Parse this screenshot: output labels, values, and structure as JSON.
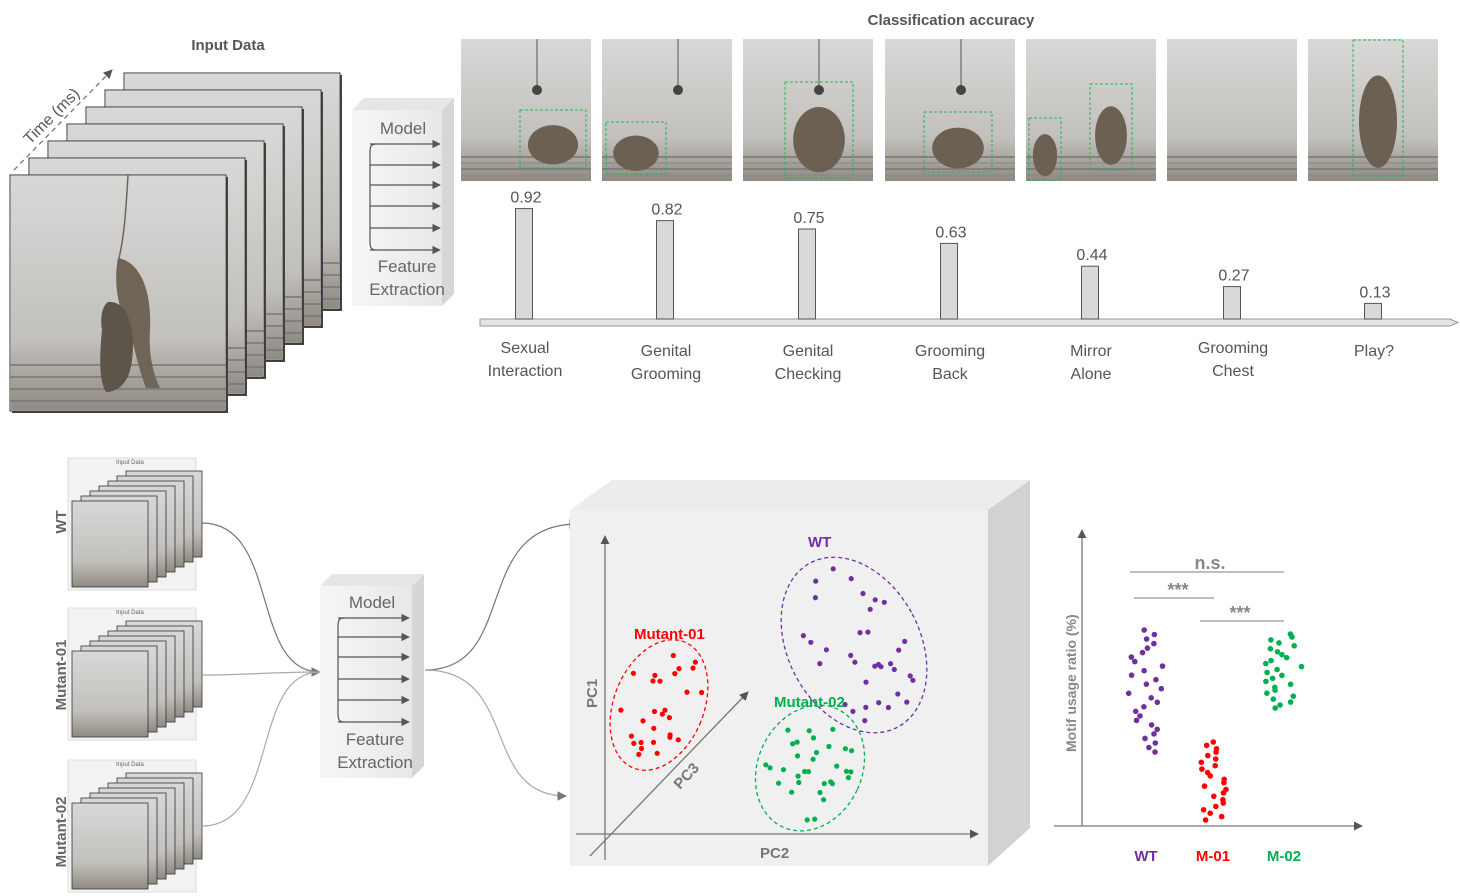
{
  "top": {
    "input_title": "Input Data",
    "time_label": "Time (ms)",
    "model_label": "Model",
    "feature_label_1": "Feature",
    "feature_label_2": "Extraction",
    "accuracy_title": "Classification accuracy"
  },
  "chart_data": {
    "type": "bar",
    "title": "Classification accuracy",
    "categories": [
      [
        "Sexual",
        "Interaction"
      ],
      [
        "Genital",
        "Grooming"
      ],
      [
        "Genital",
        "Checking"
      ],
      [
        "Grooming",
        "Back"
      ],
      [
        "Mirror",
        "Alone"
      ],
      [
        "Grooming",
        "Chest"
      ],
      [
        "Play?"
      ]
    ],
    "values": [
      0.92,
      0.82,
      0.75,
      0.63,
      0.44,
      0.27,
      0.13
    ],
    "value_labels": [
      "0.92",
      "0.82",
      "0.75",
      "0.63",
      "0.44",
      "0.27",
      "0.13"
    ]
  },
  "bottom": {
    "groups": [
      "WT",
      "Mutant-01",
      "Mutant-02"
    ],
    "thumb_title": "Input Data",
    "model_label": "Model",
    "feature_label_1": "Feature",
    "feature_label_2": "Extraction"
  },
  "pca": {
    "axes": [
      "PC1",
      "PC2",
      "PC3"
    ],
    "clusters": [
      {
        "name": "WT",
        "color": "#7030a0"
      },
      {
        "name": "Mutant-01",
        "color": "#ff0000"
      },
      {
        "name": "Mutant-02",
        "color": "#00b050"
      }
    ]
  },
  "motif": {
    "ylabel": "Motif usage ratio (%)",
    "categories": [
      "WT",
      "M-01",
      "M-02"
    ],
    "colors": [
      "#7030a0",
      "#ff0000",
      "#00b050"
    ],
    "sig_ns": "n.s.",
    "sig_1": "***",
    "sig_2": "***"
  }
}
